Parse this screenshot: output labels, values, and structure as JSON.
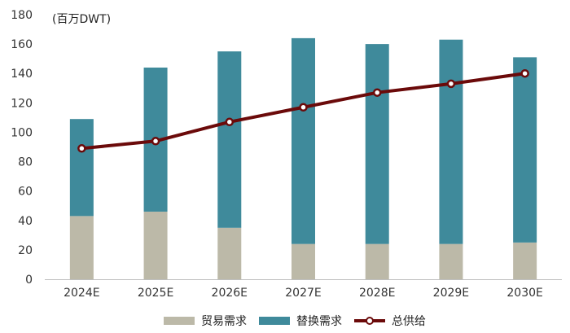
{
  "chart_data": {
    "type": "bar",
    "unit_label": "(百万DWT)",
    "categories": [
      "2024E",
      "2025E",
      "2026E",
      "2027E",
      "2028E",
      "2029E",
      "2030E"
    ],
    "series": [
      {
        "name": "贸易需求",
        "kind": "bar",
        "stack": "demand",
        "color": "#bcb9a8",
        "values": [
          43,
          46,
          35,
          24,
          24,
          24,
          25
        ]
      },
      {
        "name": "替换需求",
        "kind": "bar",
        "stack": "demand",
        "color": "#3f8a9b",
        "values": [
          66,
          98,
          120,
          140,
          136,
          139,
          126
        ]
      },
      {
        "name": "总供给",
        "kind": "line",
        "color": "#6b0a0a",
        "values": [
          89,
          94,
          107,
          117,
          127,
          133,
          140
        ]
      }
    ],
    "ylim": [
      0,
      180
    ],
    "yticks": [
      0,
      20,
      40,
      60,
      80,
      100,
      120,
      140,
      160,
      180
    ],
    "grid": false,
    "legend_position": "bottom"
  }
}
